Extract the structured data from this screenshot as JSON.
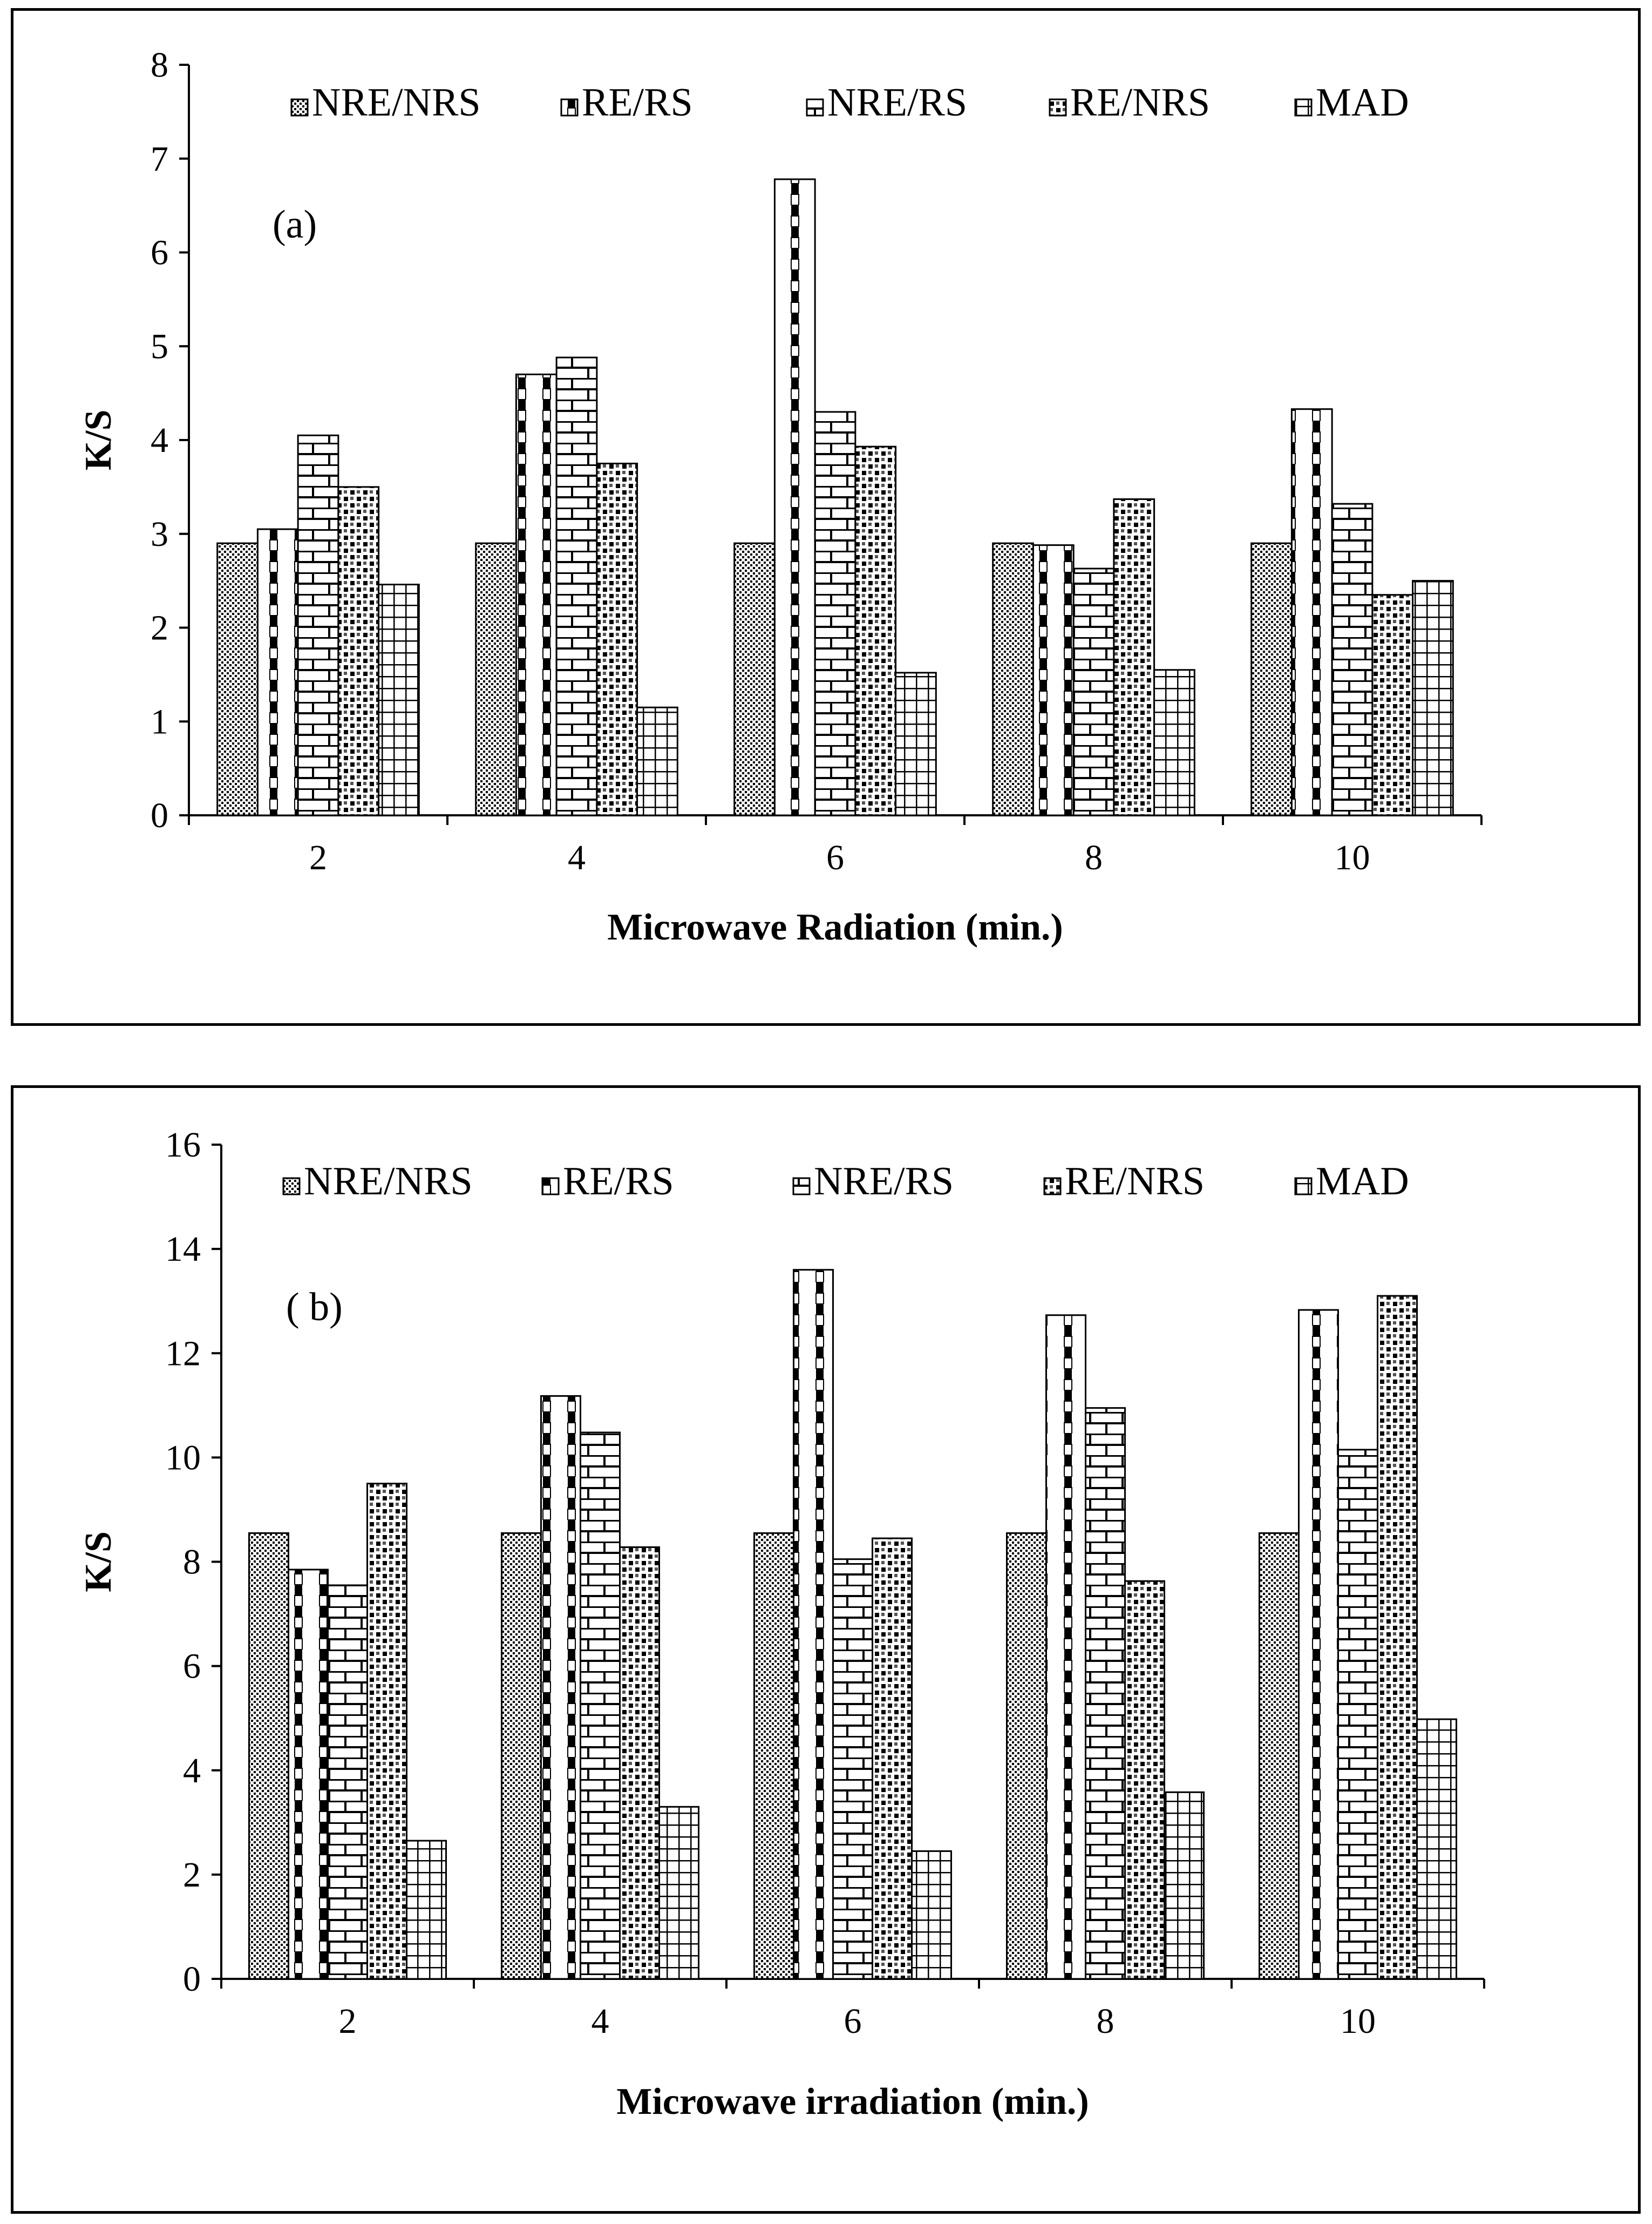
{
  "chart_data": [
    {
      "type": "bar",
      "panel_label": "(a)",
      "title": "",
      "xlabel": "Microwave Radiation (min.)",
      "ylabel": "K/S",
      "categories": [
        "2",
        "4",
        "6",
        "8",
        "10"
      ],
      "ylim": [
        0,
        8
      ],
      "yticks": [
        "0",
        "1",
        "2",
        "3",
        "4",
        "5",
        "6",
        "7",
        "8"
      ],
      "legend_position": "top",
      "series": [
        {
          "name": "NRE/NRS",
          "pattern": "dots",
          "values": [
            2.9,
            2.9,
            2.9,
            2.9,
            2.9
          ]
        },
        {
          "name": "RE/RS",
          "pattern": "checker",
          "values": [
            3.05,
            4.7,
            6.78,
            2.88,
            4.33
          ]
        },
        {
          "name": "NRE/RS",
          "pattern": "brick",
          "values": [
            4.05,
            4.88,
            4.3,
            2.63,
            3.32
          ]
        },
        {
          "name": "RE/NRS",
          "pattern": "dense-checker",
          "values": [
            3.5,
            3.75,
            3.93,
            3.37,
            2.35
          ]
        },
        {
          "name": "MAD",
          "pattern": "grid",
          "values": [
            2.46,
            1.15,
            1.52,
            1.55,
            2.5
          ]
        }
      ]
    },
    {
      "type": "bar",
      "panel_label": "( b)",
      "title": "",
      "xlabel": "Microwave irradiation (min.)",
      "ylabel": "K/S",
      "categories": [
        "2",
        "4",
        "6",
        "8",
        "10"
      ],
      "ylim": [
        0,
        16
      ],
      "yticks": [
        "0",
        "2",
        "4",
        "6",
        "8",
        "10",
        "12",
        "14",
        "16"
      ],
      "legend_position": "top",
      "series": [
        {
          "name": "NRE/NRS",
          "pattern": "dots",
          "values": [
            8.55,
            8.55,
            8.55,
            8.55,
            8.55
          ]
        },
        {
          "name": "RE/RS",
          "pattern": "checker",
          "values": [
            7.85,
            11.18,
            13.6,
            12.73,
            12.83
          ]
        },
        {
          "name": "NRE/RS",
          "pattern": "brick",
          "values": [
            7.55,
            10.48,
            8.05,
            10.95,
            10.15
          ]
        },
        {
          "name": "RE/NRS",
          "pattern": "dense-checker",
          "values": [
            9.5,
            8.28,
            8.45,
            7.63,
            13.1
          ]
        },
        {
          "name": "MAD",
          "pattern": "grid",
          "values": [
            2.65,
            3.3,
            2.45,
            3.58,
            4.98
          ]
        }
      ]
    }
  ]
}
